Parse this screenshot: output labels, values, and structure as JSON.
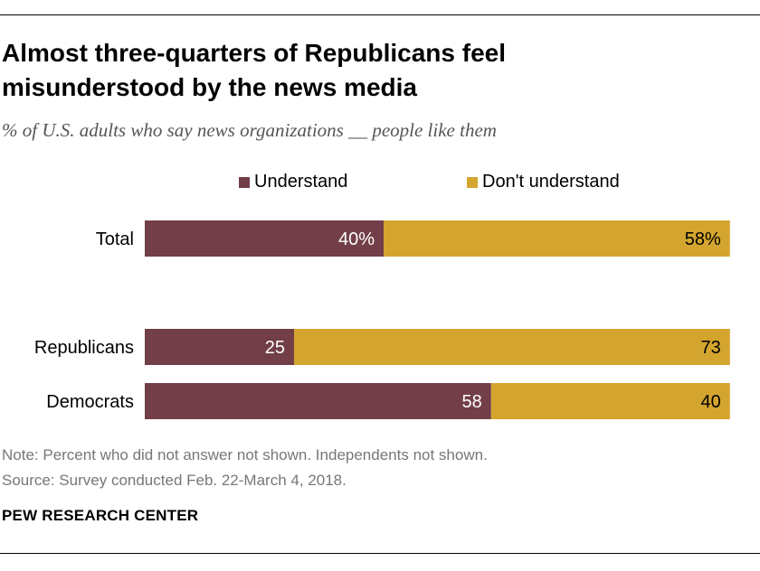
{
  "title": "Almost three-quarters of Republicans feel misunderstood by the news media",
  "subtitle": "% of U.S. adults who say news organizations __ people like them",
  "note": "Note: Percent who did not answer not shown. Independents not shown.",
  "source": "Source: Survey conducted Feb. 22-March 4, 2018.",
  "footer": "PEW RESEARCH CENTER",
  "colors": {
    "understand": "#723e48",
    "dont_understand": "#d4a52e"
  },
  "chart_data": {
    "type": "bar",
    "orientation": "horizontal",
    "stacked": true,
    "categories": [
      "Total",
      "Republicans",
      "Democrats"
    ],
    "series": [
      {
        "name": "Understand",
        "values": [
          40,
          25,
          58
        ],
        "labels": [
          "40%",
          "25",
          "58"
        ]
      },
      {
        "name": "Don't understand",
        "values": [
          58,
          73,
          40
        ],
        "labels": [
          "58%",
          "73",
          "40"
        ]
      }
    ],
    "xlim": [
      0,
      100
    ],
    "legend": "top",
    "grid": false
  }
}
